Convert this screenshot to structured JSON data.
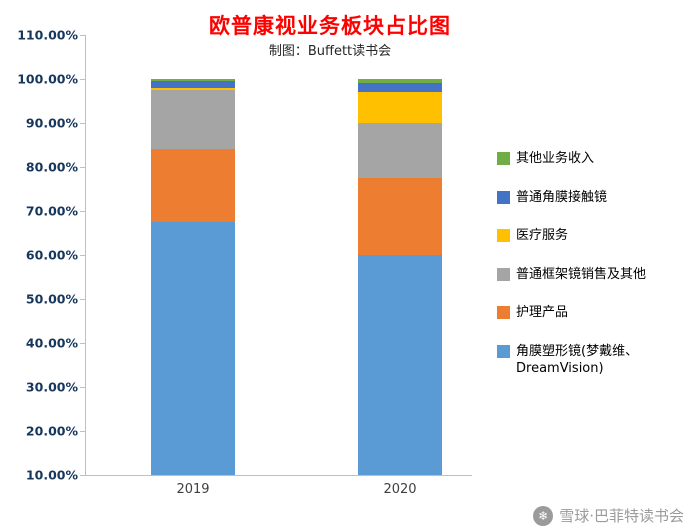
{
  "title": "欧普康视业务板块占比图",
  "subtitle": "制图：Buffett读书会",
  "watermark": {
    "text": "雪球·巴菲特读书会",
    "logo": "xueqiu-snowball"
  },
  "chart_data": {
    "type": "bar",
    "stacked": true,
    "title": "欧普康视业务板块占比图",
    "subtitle": "制图：Buffett读书会",
    "categories": [
      "2019",
      "2020"
    ],
    "series": [
      {
        "name": "角膜塑形镜(梦戴维、DreamVision)",
        "color": "#5b9bd5",
        "values": [
          67.5,
          60.0
        ]
      },
      {
        "name": "护理产品",
        "color": "#ed7d31",
        "values": [
          16.5,
          17.5
        ]
      },
      {
        "name": "普通框架镜销售及其他",
        "color": "#a5a5a5",
        "values": [
          13.5,
          12.5
        ]
      },
      {
        "name": "医疗服务",
        "color": "#ffc000",
        "values": [
          0.5,
          7.0
        ]
      },
      {
        "name": "普通角膜接触镜",
        "color": "#4472c4",
        "values": [
          1.5,
          2.0
        ]
      },
      {
        "name": "其他业务收入",
        "color": "#70ad47",
        "values": [
          0.5,
          1.0
        ]
      }
    ],
    "ylim": [
      10,
      110
    ],
    "yticks": [
      {
        "value": 110,
        "label": "110.00%"
      },
      {
        "value": 100,
        "label": "100.00%"
      },
      {
        "value": 90,
        "label": "90.00%"
      },
      {
        "value": 80,
        "label": "80.00%"
      },
      {
        "value": 70,
        "label": "70.00%"
      },
      {
        "value": 60,
        "label": "60.00%"
      },
      {
        "value": 50,
        "label": "50.00%"
      },
      {
        "value": 40,
        "label": "40.00%"
      },
      {
        "value": 30,
        "label": "30.00%"
      },
      {
        "value": 20,
        "label": "20.00%"
      },
      {
        "value": 10,
        "label": "10.00%"
      }
    ],
    "legend_position": "right",
    "legend_order": "reversed",
    "grid": false
  }
}
